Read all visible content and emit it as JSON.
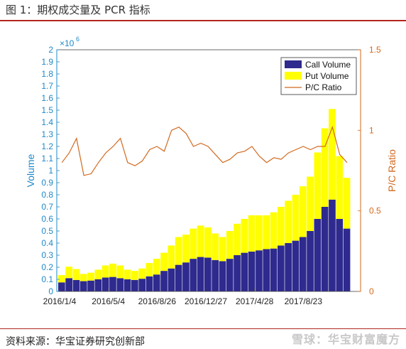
{
  "figure": {
    "title": "图 1：期权成交量及 PCR 指标",
    "source": "资料来源：华宝证券研究创新部",
    "watermark": "雪球：华宝财富魔方"
  },
  "colors": {
    "call": "#2e2a8e",
    "put": "#ffff00",
    "pcr": "#d2691e",
    "left_axis": "#1e88c8",
    "right_axis": "#d2691e",
    "accent": "#b1261e"
  },
  "chart_data": {
    "type": "bar",
    "title": "",
    "ylabel": "Volume",
    "y2label": "P/C Ratio",
    "y_exponent_label": "×10",
    "y_exponent_power": "6",
    "ylim": [
      0,
      2000000
    ],
    "y2lim": [
      0,
      1.5
    ],
    "yticks": [
      "0",
      "0.1",
      "0.2",
      "0.3",
      "0.4",
      "0.5",
      "0.6",
      "0.7",
      "0.8",
      "0.9",
      "1",
      "1.1",
      "1.2",
      "1.3",
      "1.4",
      "1.5",
      "1.6",
      "1.7",
      "1.8",
      "1.9",
      "2"
    ],
    "y2ticks": [
      "0",
      "0.5",
      "1",
      "1.5"
    ],
    "xticks": [
      "2016/1/4",
      "2016/5/4",
      "2016/8/26",
      "2016/12/27",
      "2017/4/28",
      "2017/8/23"
    ],
    "legend_position": "top-right",
    "series": [
      {
        "name": "Call Volume",
        "style": "stacked-bar",
        "values": [
          75000,
          110000,
          95000,
          85000,
          90000,
          100000,
          115000,
          120000,
          110000,
          100000,
          95000,
          105000,
          125000,
          140000,
          170000,
          190000,
          220000,
          240000,
          270000,
          285000,
          280000,
          260000,
          250000,
          270000,
          300000,
          320000,
          330000,
          340000,
          350000,
          355000,
          380000,
          400000,
          420000,
          450000,
          500000,
          600000,
          700000,
          760000,
          600000,
          520000
        ]
      },
      {
        "name": "Put Volume",
        "style": "stacked-bar",
        "values": [
          60000,
          95000,
          90000,
          60000,
          65000,
          80000,
          100000,
          110000,
          105000,
          80000,
          75000,
          85000,
          110000,
          130000,
          150000,
          190000,
          230000,
          230000,
          250000,
          260000,
          250000,
          220000,
          200000,
          230000,
          260000,
          280000,
          300000,
          290000,
          280000,
          300000,
          320000,
          350000,
          380000,
          420000,
          450000,
          550000,
          650000,
          750000,
          520000,
          420000
        ]
      },
      {
        "name": "P/C Ratio",
        "style": "line",
        "axis": "right",
        "values": [
          0.8,
          0.86,
          0.95,
          0.72,
          0.73,
          0.8,
          0.86,
          0.9,
          0.95,
          0.8,
          0.78,
          0.81,
          0.88,
          0.9,
          0.87,
          1.0,
          1.02,
          0.98,
          0.9,
          0.92,
          0.9,
          0.85,
          0.8,
          0.82,
          0.86,
          0.87,
          0.9,
          0.84,
          0.8,
          0.83,
          0.82,
          0.86,
          0.88,
          0.9,
          0.88,
          0.9,
          0.9,
          1.02,
          0.85,
          0.8
        ]
      }
    ]
  }
}
